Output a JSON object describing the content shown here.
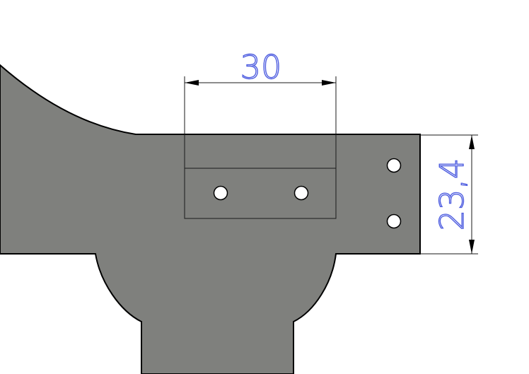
{
  "drawing": {
    "part_fill": "#7f807d",
    "edge_color": "#000000",
    "hole_fill": "#ffffff",
    "dim_line_color": "#1a1a1a",
    "dim_text_color": "#4f5ee0",
    "dimensions": {
      "width_label": "30",
      "height_label": "23,4"
    }
  }
}
